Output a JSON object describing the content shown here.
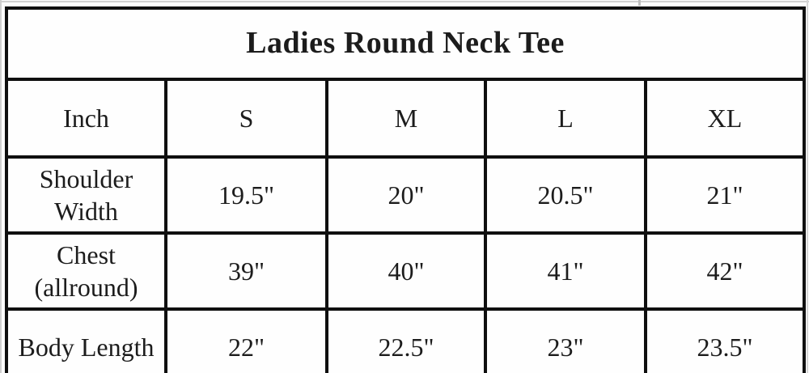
{
  "size_chart": {
    "title": "Ladies Round Neck Tee",
    "unit_label": "Inch",
    "columns": [
      "S",
      "M",
      "L",
      "XL"
    ],
    "rows": [
      {
        "label": "Shoulder Width",
        "values": [
          "19.5\"",
          "20\"",
          "20.5\"",
          "21\""
        ]
      },
      {
        "label": "Chest (allround)",
        "values": [
          "39\"",
          "40\"",
          "41\"",
          "42\""
        ]
      },
      {
        "label": "Body Length",
        "values": [
          "22\"",
          "22.5\"",
          "23\"",
          "23.5\""
        ]
      }
    ],
    "colors": {
      "border": "#0f0f0f",
      "text": "#1c1c1c",
      "background": "#fdfdfd"
    }
  }
}
